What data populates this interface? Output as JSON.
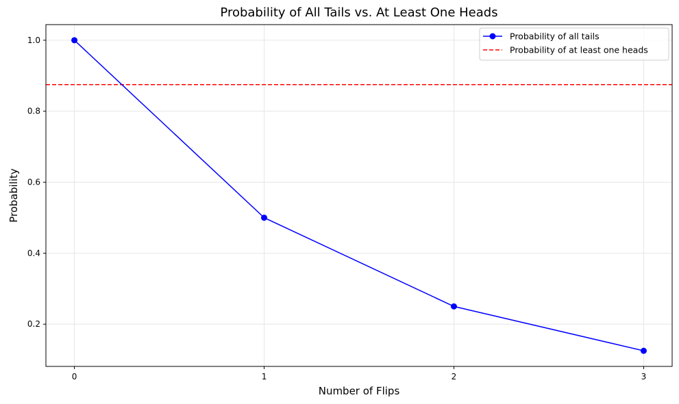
{
  "chart_data": {
    "type": "line",
    "title": "Probability of All Tails vs. At Least One Heads",
    "xlabel": "Number of Flips",
    "ylabel": "Probability",
    "x": [
      0,
      1,
      2,
      3
    ],
    "xticks": [
      "0",
      "1",
      "2",
      "3"
    ],
    "yticks": [
      "0.2",
      "0.4",
      "0.6",
      "0.8",
      "1.0"
    ],
    "xlim": [
      -0.15,
      3.15
    ],
    "ylim": [
      0.081,
      1.044
    ],
    "grid": true,
    "legend_position": "upper right",
    "series": [
      {
        "name": "Probability of all tails",
        "type": "line",
        "marker": "circle",
        "color": "#0000ff",
        "values": [
          1.0,
          0.5,
          0.25,
          0.125
        ]
      },
      {
        "name": "Probability of at least one heads",
        "type": "hline",
        "linestyle": "dashed",
        "color": "#ff0000",
        "value": 0.875
      }
    ]
  }
}
